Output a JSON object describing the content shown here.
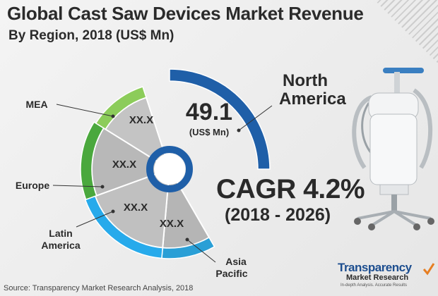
{
  "header": {
    "title": "Global Cast Saw Devices Market Revenue",
    "subtitle": "By Region, 2018 (US$ Mn)"
  },
  "highlight": {
    "value": "49.1",
    "unit": "(US$ Mn)",
    "cagr": "CAGR 4.2%",
    "period": "(2018 - 2026)"
  },
  "chart_data": {
    "type": "pie",
    "title": "Global Cast Saw Devices Market Revenue",
    "subtitle": "By Region, 2018 (US$ Mn)",
    "categories": [
      "North America",
      "Asia Pacific",
      "Latin America",
      "Europe",
      "MEA"
    ],
    "values": [
      49.1,
      null,
      null,
      null,
      null
    ],
    "slice_labels": [
      "49.1",
      "XX.X",
      "XX.X",
      "XX.X",
      "XX.X"
    ],
    "region_labels": [
      [
        "North",
        "America"
      ],
      [
        "Asia",
        "Pacific"
      ],
      [
        "Latin",
        "America"
      ],
      [
        "Europe"
      ],
      [
        "MEA"
      ]
    ],
    "colors": [
      "#1f5fa8",
      "#2a9fd6",
      "#27aaeb",
      "#4aa83d",
      "#8ccc5a"
    ],
    "unit": "US$ Mn",
    "year": "2018"
  },
  "source": "Source: Transparency Market Research Analysis, 2018",
  "logo": {
    "name": "Transparency",
    "sub": "Market Research",
    "tagline": "In-depth Analysis. Accurate Results"
  }
}
